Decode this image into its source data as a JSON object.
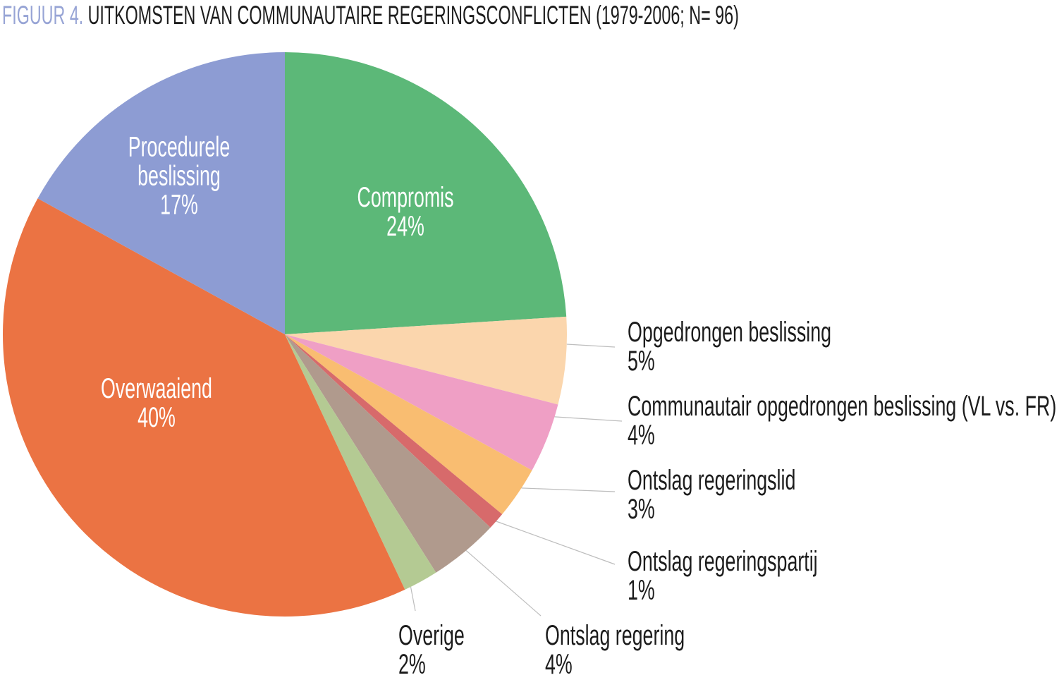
{
  "title": {
    "prefix": "FIGUUR 4.",
    "text": "UITKOMSTEN VAN COMMUNAUTAIRE REGERINGSCONFLICTEN (1979-2006; N= 96)"
  },
  "palette": {
    "title_prefix": "#97a4d5",
    "text": "#1c1c1c",
    "leader_line": "#bdbdbd",
    "background": "#ffffff",
    "inside_label_text": "#ffffff"
  },
  "chart_data": {
    "type": "pie",
    "title": "UITKOMSTEN VAN COMMUNAUTAIRE REGERINGSCONFLICTEN (1979-2006; N= 96)",
    "n": 96,
    "start_angle_deg": 0,
    "direction": "clockwise",
    "legend": "none",
    "slices": [
      {
        "label": "Compromis",
        "value": 24,
        "pct": "24%",
        "color": "#5cb878",
        "label_placement": "inside"
      },
      {
        "label": "Opgedrongen beslissing",
        "value": 5,
        "pct": "5%",
        "color": "#fbd6ad",
        "label_placement": "outside-right"
      },
      {
        "label": "Communautair opgedrongen beslissing (VL vs. FR)",
        "value": 4,
        "pct": "4%",
        "color": "#ef9fc5",
        "label_placement": "outside-right"
      },
      {
        "label": "Ontslag regeringslid",
        "value": 3,
        "pct": "3%",
        "color": "#f9bd71",
        "label_placement": "outside-right"
      },
      {
        "label": "Ontslag regeringspartij",
        "value": 1,
        "pct": "1%",
        "color": "#d76a6b",
        "label_placement": "outside-right"
      },
      {
        "label": "Ontslag regering",
        "value": 4,
        "pct": "4%",
        "color": "#b09a8d",
        "label_placement": "outside-bottom"
      },
      {
        "label": "Overige",
        "value": 2,
        "pct": "2%",
        "color": "#b4ca93",
        "label_placement": "outside-bottom"
      },
      {
        "label": "Overwaaiend",
        "value": 40,
        "pct": "40%",
        "color": "#eb7343",
        "label_placement": "inside"
      },
      {
        "label": "Procedurele beslissing",
        "value": 17,
        "pct": "17%",
        "color": "#8d9cd3",
        "label_placement": "inside"
      }
    ]
  }
}
